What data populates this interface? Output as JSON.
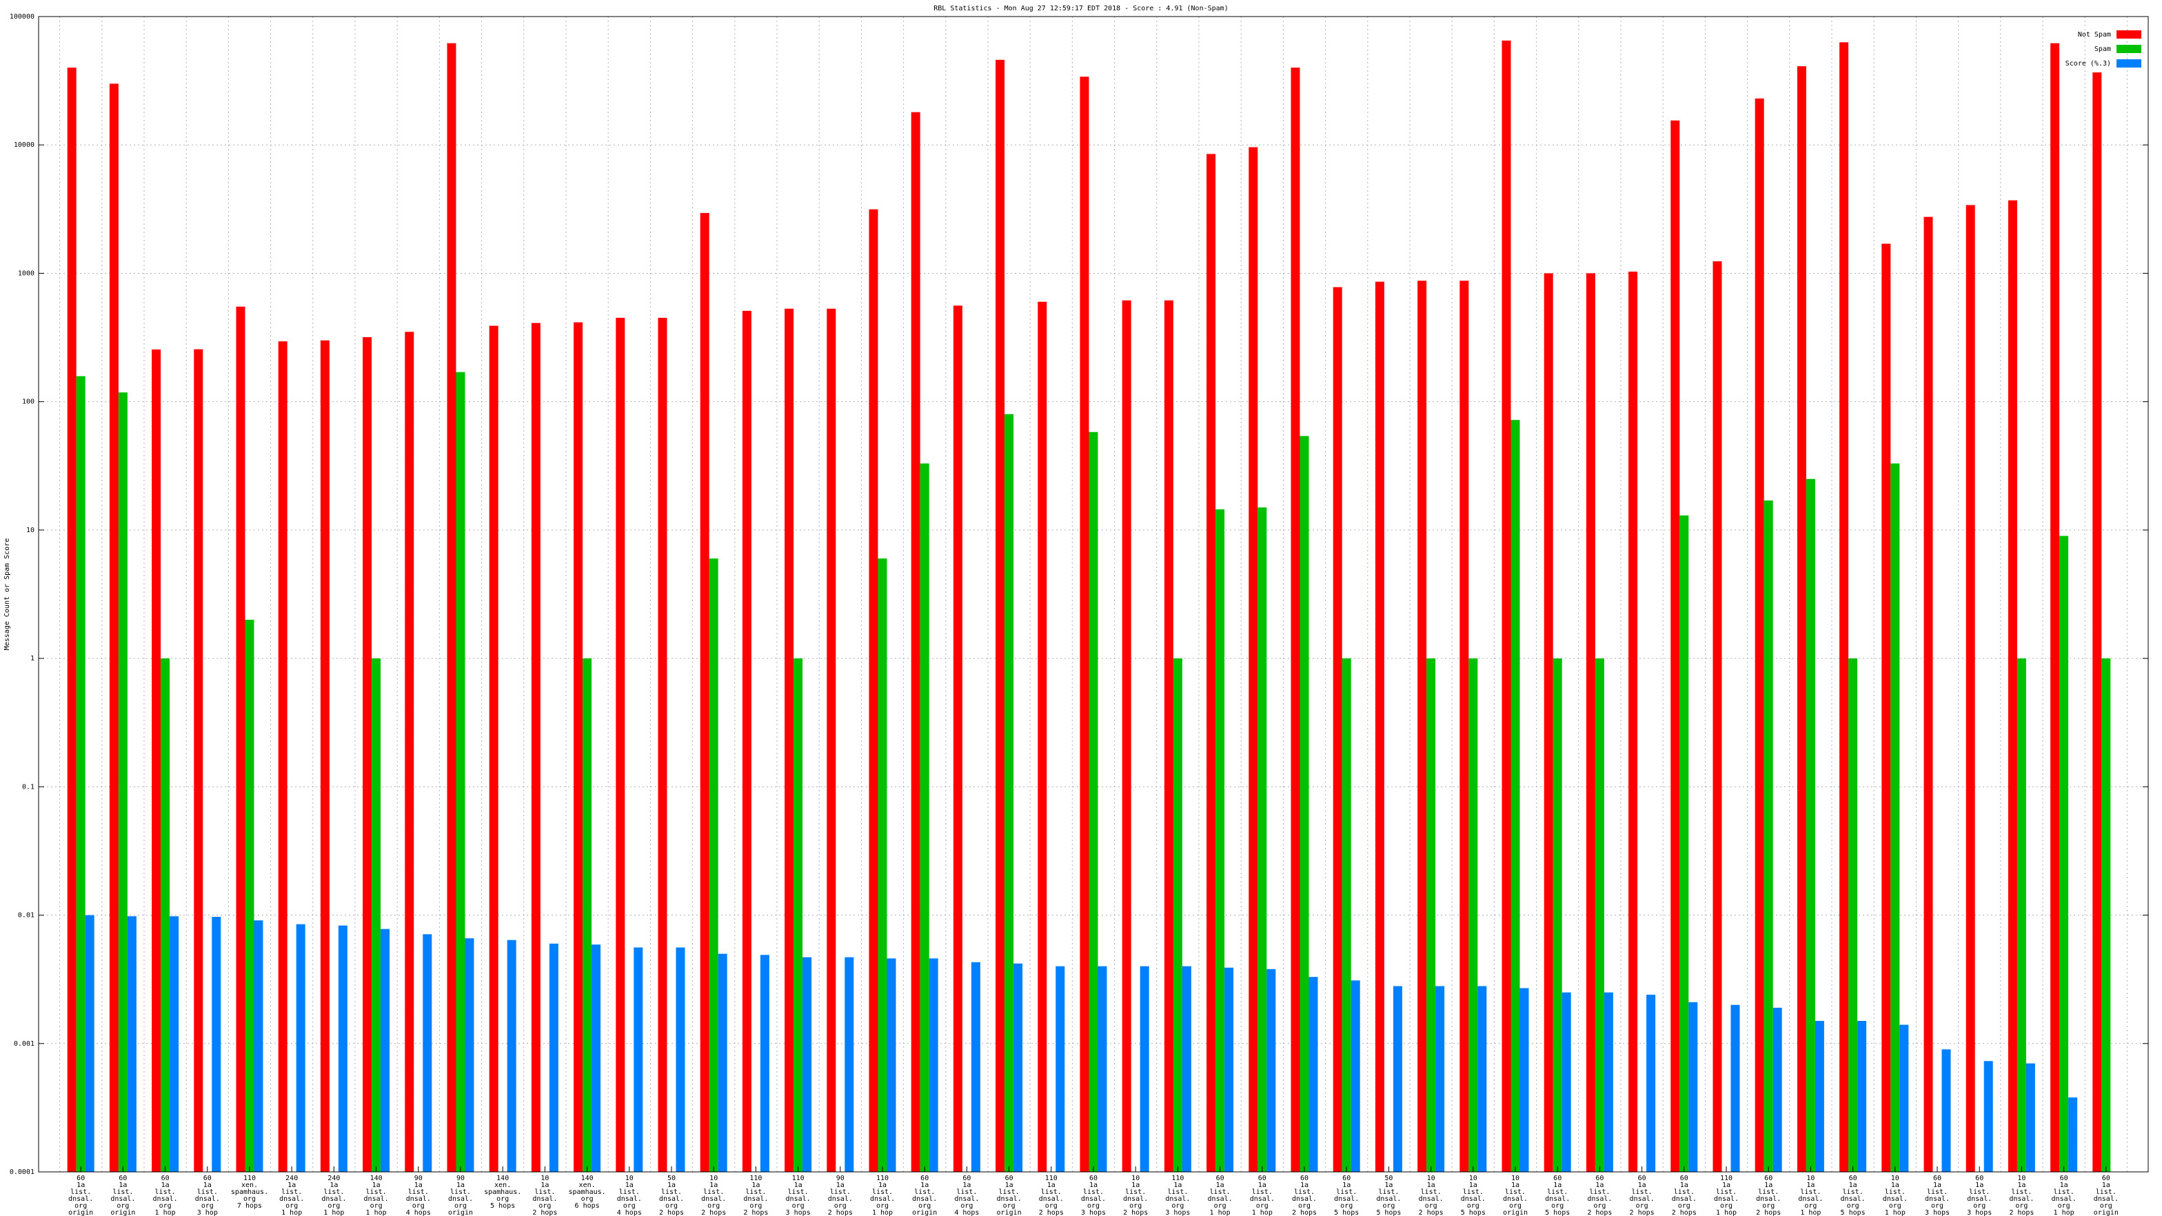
{
  "chart_data": {
    "type": "bar",
    "title": "RBL Statistics - Mon Aug 27 12:59:17 EDT 2018 - Score : 4.91 (Non-Spam)",
    "y_label": "Message Count or Spam Score",
    "log_scale": true,
    "grid": true,
    "legend_position": "upper right",
    "ylim": [
      0.0001,
      100000
    ],
    "yticks": [
      0.0001,
      0.001,
      0.01,
      0.1,
      1,
      10,
      100,
      1000,
      10000,
      100000
    ],
    "categories": [
      [
        "60",
        "1a",
        "list.",
        "dnsal.",
        "org",
        "origin"
      ],
      [
        "60",
        "1a",
        "list.",
        "dnsal.",
        "org",
        "origin"
      ],
      [
        "60",
        "1a",
        "list.",
        "dnsal.",
        "org",
        "1 hop"
      ],
      [
        "60",
        "1a",
        "list.",
        "dnsal.",
        "org",
        "3 hop"
      ],
      [
        "110",
        "xen.",
        "spamhaus.",
        "org",
        "7 hops"
      ],
      [
        "240",
        "1a",
        "list.",
        "dnsal.",
        "org",
        "1 hop"
      ],
      [
        "240",
        "1a",
        "list.",
        "dnsal.",
        "org",
        "1 hop"
      ],
      [
        "140",
        "1a",
        "list.",
        "dnsal.",
        "org",
        "1 hop"
      ],
      [
        "90",
        "1a",
        "list.",
        "dnsal.",
        "org",
        "4 hops"
      ],
      [
        "90",
        "1a",
        "list.",
        "dnsal.",
        "org",
        "origin"
      ],
      [
        "140",
        "xen.",
        "spamhaus.",
        "org",
        "5 hops"
      ],
      [
        "10",
        "1a",
        "list.",
        "dnsal.",
        "org",
        "2 hops"
      ],
      [
        "140",
        "xen.",
        "spamhaus.",
        "org",
        "6 hops"
      ],
      [
        "10",
        "1a",
        "list.",
        "dnsal.",
        "org",
        "4 hops"
      ],
      [
        "50",
        "1a",
        "list.",
        "dnsal.",
        "org",
        "2 hops"
      ],
      [
        "10",
        "1a",
        "list.",
        "dnsal.",
        "org",
        "2 hops"
      ],
      [
        "110",
        "1a",
        "list.",
        "dnsal.",
        "org",
        "2 hops"
      ],
      [
        "110",
        "1a",
        "list.",
        "dnsal.",
        "org",
        "3 hops"
      ],
      [
        "90",
        "1a",
        "list.",
        "dnsal.",
        "org",
        "2 hops"
      ],
      [
        "110",
        "1a",
        "list.",
        "dnsal.",
        "org",
        "1 hop"
      ],
      [
        "60",
        "1a",
        "list.",
        "dnsal.",
        "org",
        "origin"
      ],
      [
        "60",
        "1a",
        "list.",
        "dnsal.",
        "org",
        "4 hops"
      ],
      [
        "60",
        "1a",
        "list.",
        "dnsal.",
        "org",
        "origin"
      ],
      [
        "110",
        "1a",
        "list.",
        "dnsal.",
        "org",
        "2 hops"
      ],
      [
        "60",
        "1a",
        "list.",
        "dnsal.",
        "org",
        "3 hops"
      ],
      [
        "10",
        "1a",
        "list.",
        "dnsal.",
        "org",
        "2 hops"
      ],
      [
        "110",
        "1a",
        "list.",
        "dnsal.",
        "org",
        "3 hops"
      ],
      [
        "60",
        "1a",
        "list.",
        "dnsal.",
        "org",
        "1 hop"
      ],
      [
        "60",
        "1a",
        "list.",
        "dnsal.",
        "org",
        "1 hop"
      ],
      [
        "60",
        "1a",
        "list.",
        "dnsal.",
        "org",
        "2 hops"
      ],
      [
        "60",
        "1a",
        "list.",
        "dnsal.",
        "org",
        "5 hops"
      ],
      [
        "50",
        "1a",
        "list.",
        "dnsal.",
        "org",
        "5 hops"
      ],
      [
        "10",
        "1a",
        "list.",
        "dnsal.",
        "org",
        "2 hops"
      ],
      [
        "10",
        "1a",
        "list.",
        "dnsal.",
        "org",
        "5 hops"
      ],
      [
        "10",
        "1a",
        "list.",
        "dnsal.",
        "org",
        "origin"
      ],
      [
        "60",
        "1a",
        "list.",
        "dnsal.",
        "org",
        "5 hops"
      ],
      [
        "60",
        "1a",
        "list.",
        "dnsal.",
        "org",
        "2 hops"
      ],
      [
        "60",
        "1a",
        "list.",
        "dnsal.",
        "org",
        "2 hops"
      ],
      [
        "60",
        "1a",
        "list.",
        "dnsal.",
        "org",
        "2 hops"
      ],
      [
        "110",
        "1a",
        "list.",
        "dnsal.",
        "org",
        "1 hop"
      ],
      [
        "60",
        "1a",
        "list.",
        "dnsal.",
        "org",
        "2 hops"
      ],
      [
        "10",
        "1a",
        "list.",
        "dnsal.",
        "org",
        "1 hop"
      ],
      [
        "60",
        "1a",
        "list.",
        "dnsal.",
        "org",
        "5 hops"
      ],
      [
        "10",
        "1a",
        "list.",
        "dnsal.",
        "org",
        "1 hop"
      ],
      [
        "60",
        "1a",
        "list.",
        "dnsal.",
        "org",
        "3 hops"
      ],
      [
        "60",
        "1a",
        "list.",
        "dnsal.",
        "org",
        "3 hops"
      ],
      [
        "10",
        "1a",
        "list.",
        "dnsal.",
        "org",
        "2 hops"
      ],
      [
        "60",
        "1a",
        "list.",
        "dnsal.",
        "org",
        "1 hop"
      ],
      [
        "60",
        "1a",
        "list.",
        "dnsal.",
        "org",
        "origin"
      ]
    ],
    "series": [
      {
        "name": "Not Spam",
        "color": "#ff0000",
        "values": [
          40000,
          30000,
          255,
          256,
          550,
          295,
          300,
          318,
          350,
          62000,
          390,
          410,
          415,
          450,
          450,
          2950,
          510,
          530,
          530,
          3150,
          18000,
          560,
          46000,
          600,
          34000,
          615,
          615,
          8500,
          9600,
          40000,
          780,
          860,
          875,
          875,
          65000,
          1000,
          1000,
          1030,
          15500,
          1240,
          23000,
          41000,
          63000,
          1700,
          2750,
          3400,
          3700,
          62000,
          36700
        ]
      },
      {
        "name": "Spam",
        "color": "#00c000",
        "values": [
          158,
          118,
          1,
          null,
          2,
          null,
          null,
          1,
          null,
          170,
          null,
          null,
          1,
          null,
          null,
          6,
          null,
          1,
          null,
          6,
          33,
          null,
          80,
          null,
          58,
          null,
          1,
          14.5,
          15,
          54,
          1,
          null,
          1,
          1,
          72,
          1,
          1,
          null,
          13,
          null,
          17,
          25,
          1,
          33,
          null,
          null,
          1,
          9,
          1
        ]
      },
      {
        "name": "Score (%.3)",
        "color": "#0080ff",
        "values": [
          0.01,
          0.0098,
          0.0098,
          0.0097,
          0.0091,
          0.0085,
          0.0083,
          0.0078,
          0.0071,
          0.0066,
          0.0064,
          0.006,
          0.0059,
          0.0056,
          0.0056,
          0.005,
          0.0049,
          0.0047,
          0.0047,
          0.0046,
          0.0046,
          0.0043,
          0.0042,
          0.004,
          0.004,
          0.004,
          0.004,
          0.0039,
          0.0038,
          0.0033,
          0.0031,
          0.0028,
          0.0028,
          0.0028,
          0.0027,
          0.0025,
          0.0025,
          0.0024,
          0.0021,
          0.002,
          0.0019,
          0.0015,
          0.0015,
          0.0014,
          0.0009,
          0.00073,
          0.0007,
          0.00038,
          null
        ]
      }
    ]
  }
}
